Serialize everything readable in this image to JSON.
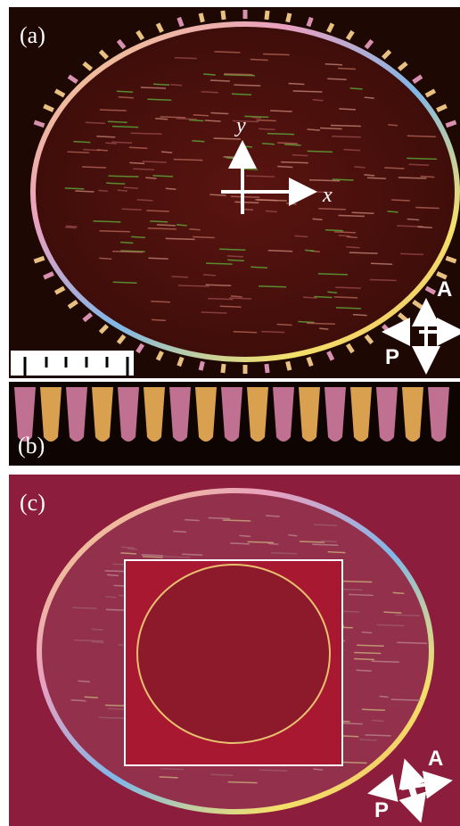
{
  "panels": [
    {
      "label": "(a)",
      "axes": {
        "y": "y",
        "x": "x"
      },
      "polarizers": {
        "analyzer": "A",
        "polarizer": "P"
      }
    },
    {
      "label": "(b)"
    },
    {
      "label": "(c)",
      "polarizers": {
        "analyzer": "A",
        "polarizer": "P"
      }
    }
  ]
}
